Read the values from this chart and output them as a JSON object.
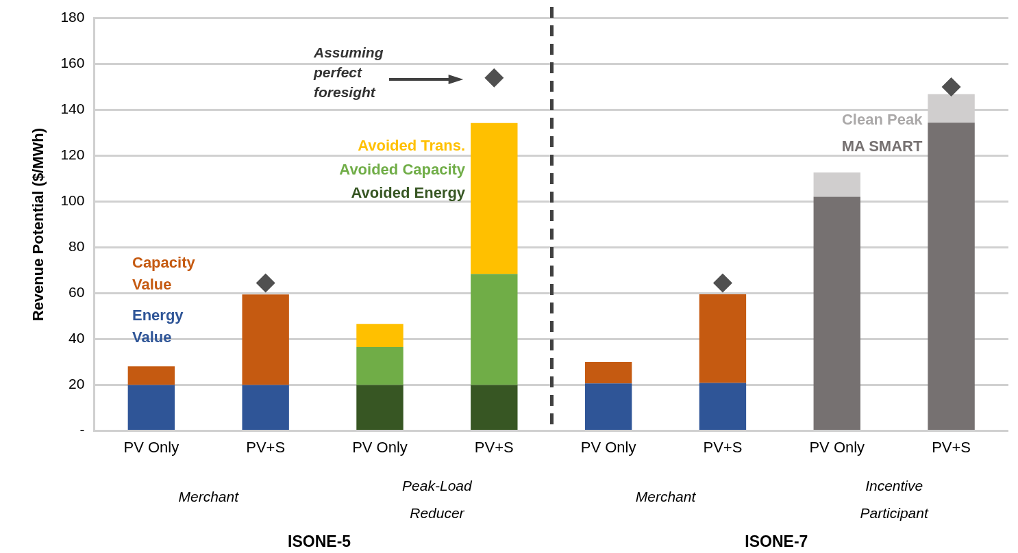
{
  "chart_data": {
    "type": "bar",
    "stacked": true,
    "ylabel": "Revenue Potential ($/MWh)",
    "categories": [
      "PV Only",
      "PV+S",
      "PV Only",
      "PV+S",
      "PV Only",
      "PV+S",
      "PV Only",
      "PV+S"
    ],
    "series": [
      {
        "name": "Energy Value",
        "color": "#2f5597",
        "values": [
          20,
          20,
          null,
          null,
          20.7,
          20.9,
          null,
          null
        ]
      },
      {
        "name": "Capacity Value",
        "color": "#c55a11",
        "values": [
          8.2,
          39.5,
          null,
          null,
          9.3,
          38.7,
          null,
          null
        ]
      },
      {
        "name": "Avoided Energy",
        "color": "#375623",
        "values": [
          null,
          null,
          20,
          20,
          null,
          null,
          null,
          null
        ]
      },
      {
        "name": "Avoided Capacity",
        "color": "#70ad47",
        "values": [
          null,
          null,
          16.6,
          48.5,
          null,
          null,
          null,
          null
        ]
      },
      {
        "name": "Avoided Trans.",
        "color": "#ffc000",
        "values": [
          null,
          null,
          10.1,
          65.8,
          null,
          null,
          null,
          null
        ]
      },
      {
        "name": "MA SMART",
        "color": "#767171",
        "values": [
          null,
          null,
          null,
          null,
          null,
          null,
          102.1,
          134.4
        ]
      },
      {
        "name": "Clean Peak",
        "color": "#d0cece",
        "values": [
          null,
          null,
          null,
          null,
          null,
          null,
          10.6,
          12.5
        ]
      },
      {
        "type": "scatter",
        "color": "#505050",
        "values": [
          null,
          64.5,
          null,
          154,
          null,
          64.5,
          null,
          150
        ]
      }
    ],
    "marker": "diamond",
    "ylim": [
      0,
      180
    ],
    "yticks": [
      {
        "value": 0,
        "label": "-"
      },
      20,
      40,
      60,
      80,
      100,
      120,
      140,
      160,
      180
    ],
    "grid": "y",
    "legend": false,
    "annotations": [
      "Merchant",
      "Peak-Load Reducer",
      "Merchant",
      "Incentive Participant",
      "ISONE-5",
      "ISONE-7",
      "Assuming perfect foresight"
    ]
  }
}
